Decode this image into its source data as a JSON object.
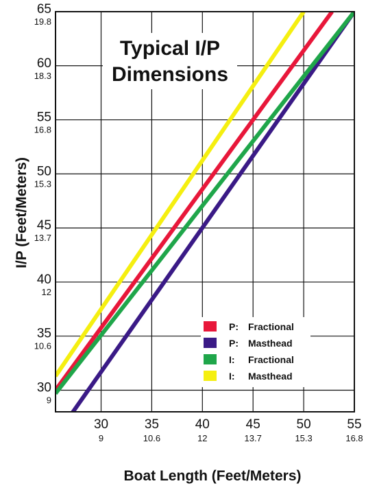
{
  "chart_data": {
    "type": "line",
    "title_lines": [
      "Typical I/P",
      "Dimensions"
    ],
    "xlabel": "Boat Length (Feet/Meters)",
    "ylabel": "I/P (Feet/Meters)",
    "xlim": [
      25.5,
      55
    ],
    "ylim": [
      28,
      65
    ],
    "x_ticks": [
      {
        "value": 30,
        "label": "30",
        "sublabel": "9"
      },
      {
        "value": 35,
        "label": "35",
        "sublabel": "10.6"
      },
      {
        "value": 40,
        "label": "40",
        "sublabel": "12"
      },
      {
        "value": 45,
        "label": "45",
        "sublabel": "13.7"
      },
      {
        "value": 50,
        "label": "50",
        "sublabel": "15.3"
      },
      {
        "value": 55,
        "label": "55",
        "sublabel": "16.8"
      }
    ],
    "y_ticks": [
      {
        "value": 30,
        "label": "30",
        "sublabel": "9"
      },
      {
        "value": 35,
        "label": "35",
        "sublabel": "10.6"
      },
      {
        "value": 40,
        "label": "40",
        "sublabel": "12"
      },
      {
        "value": 45,
        "label": "45",
        "sublabel": "13.7"
      },
      {
        "value": 50,
        "label": "50",
        "sublabel": "15.3"
      },
      {
        "value": 55,
        "label": "55",
        "sublabel": "16.8"
      },
      {
        "value": 60,
        "label": "60",
        "sublabel": "18.3"
      },
      {
        "value": 65,
        "label": "65",
        "sublabel": "19.8"
      }
    ],
    "grid": true,
    "legend_position": "bottom-right",
    "series": [
      {
        "name": "P: Fractional",
        "legend_label": "Fractional",
        "legend_prefix": "P:",
        "color": "#e8173a",
        "x": [
          25.5,
          52.8
        ],
        "y": [
          30.0,
          65.0
        ]
      },
      {
        "name": "P: Masthead",
        "legend_label": "Masthead",
        "legend_prefix": "P:",
        "color": "#3a1a86",
        "x": [
          25.5,
          55.0
        ],
        "y": [
          25.7,
          65.0
        ]
      },
      {
        "name": "I: Fractional",
        "legend_label": "Fractional",
        "legend_prefix": "I:",
        "color": "#1fa64a",
        "x": [
          25.5,
          55.0
        ],
        "y": [
          29.7,
          65.0
        ]
      },
      {
        "name": "I: Masthead",
        "legend_label": "Masthead",
        "legend_prefix": "I:",
        "color": "#f5ef10",
        "x": [
          25.5,
          50.0
        ],
        "y": [
          31.3,
          65.0
        ]
      }
    ]
  }
}
